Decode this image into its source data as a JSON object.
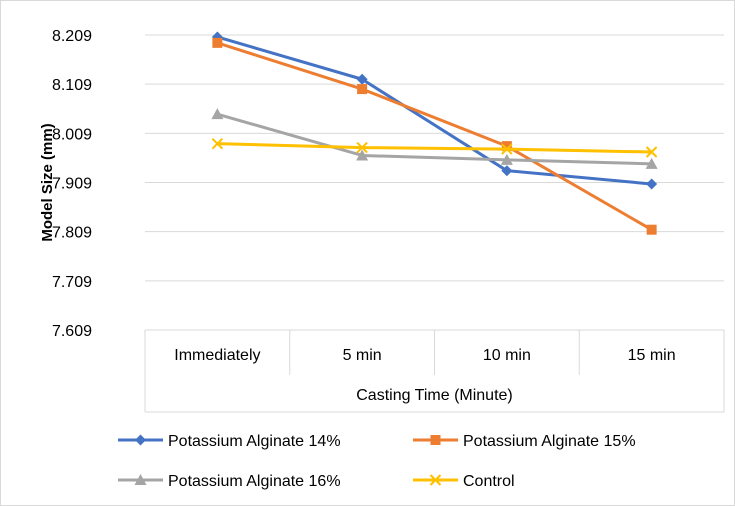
{
  "chart_data": {
    "type": "line",
    "categories": [
      "Immediately",
      "5 min",
      "10 min",
      "15 min"
    ],
    "xlabel": "Casting Time (Minute)",
    "ylabel": "Model Size (mm)",
    "ylim": [
      7.609,
      8.209
    ],
    "yticks": [
      "8.209",
      "8.109",
      "8.009",
      "7.909",
      "7.809",
      "7.709",
      "7.609"
    ],
    "grid": true,
    "legend_position": "bottom",
    "series": [
      {
        "name": "Potassium Alginate 14%",
        "values": [
          8.205,
          8.119,
          7.933,
          7.906
        ],
        "color": "#4472C4",
        "marker": "diamond"
      },
      {
        "name": "Potassium Alginate 15%",
        "values": [
          8.193,
          8.099,
          7.983,
          7.813
        ],
        "color": "#ED7D31",
        "marker": "square"
      },
      {
        "name": "Potassium Alginate 16%",
        "values": [
          8.048,
          7.964,
          7.955,
          7.947
        ],
        "color": "#A5A5A5",
        "marker": "triangle"
      },
      {
        "name": "Control",
        "values": [
          7.988,
          7.98,
          7.977,
          7.971
        ],
        "color": "#FFC000",
        "marker": "x"
      }
    ]
  }
}
